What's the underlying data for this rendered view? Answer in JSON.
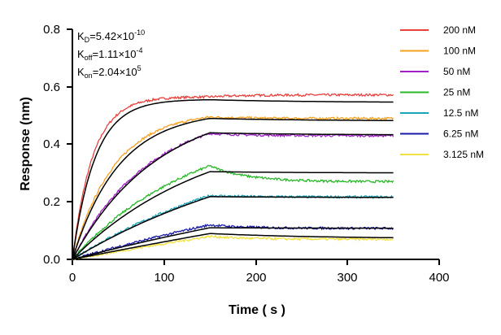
{
  "chart_data": {
    "type": "line",
    "xlabel": "Time ( s )",
    "ylabel": "Response (nm)",
    "xlim": [
      0,
      400
    ],
    "ylim": [
      0,
      0.8
    ],
    "x_ticks": [
      "0",
      "100",
      "200",
      "300",
      "400"
    ],
    "y_ticks": [
      "0.0",
      "0.2",
      "0.4",
      "0.6",
      "0.8"
    ],
    "legend_position": "top-right",
    "kinetics": {
      "kd_main": "K",
      "kd_sub": "D",
      "kd_val": "=5.42×10",
      "kd_exp": "-10",
      "koff_main": "K",
      "koff_sub": "off",
      "koff_val": "=1.11×10",
      "koff_exp": "-4",
      "kon_main": "K",
      "kon_sub": "on",
      "kon_val": "=2.04×10",
      "kon_exp": "5"
    },
    "assoc_end": 150,
    "x_end": 350,
    "fit_color": "#000000",
    "series": [
      {
        "name": "200 nM",
        "color": "#e8413c",
        "peak": 0.565,
        "end": 0.572,
        "fit_peak": 0.555,
        "fit_end": 0.545,
        "k": 0.045
      },
      {
        "name": "100 nM",
        "color": "#f5a020",
        "peak": 0.495,
        "end": 0.49,
        "fit_peak": 0.49,
        "fit_end": 0.481,
        "k": 0.022
      },
      {
        "name": "50 nM",
        "color": "#a020c8",
        "peak": 0.438,
        "end": 0.43,
        "fit_peak": 0.44,
        "fit_end": 0.432,
        "k": 0.012
      },
      {
        "name": "25 nM",
        "color": "#28b828",
        "peak": 0.325,
        "end": 0.27,
        "fit_peak": 0.305,
        "fit_end": 0.3,
        "k": 0.0075
      },
      {
        "name": "12.5 nM",
        "color": "#1aa5b8",
        "peak": 0.222,
        "end": 0.217,
        "fit_peak": 0.218,
        "fit_end": 0.215,
        "k": 0.0045
      },
      {
        "name": "6.25 nM",
        "color": "#1a1aa8",
        "peak": 0.12,
        "end": 0.108,
        "fit_peak": 0.11,
        "fit_end": 0.108,
        "k": 0.002
      },
      {
        "name": "3.125 nM",
        "color": "#f0e040",
        "peak": 0.08,
        "end": 0.07,
        "fit_peak": 0.09,
        "fit_end": 0.072,
        "k": 0.0008
      }
    ]
  }
}
